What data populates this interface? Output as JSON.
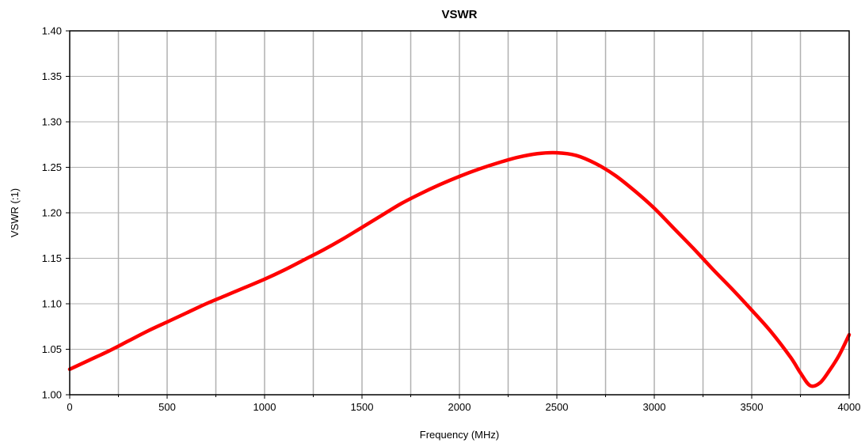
{
  "chart_data": {
    "type": "line",
    "title": "VSWR",
    "xlabel": "Frequency (MHz)",
    "ylabel": "VSWR (:1)",
    "xlim": [
      0,
      4000
    ],
    "ylim": [
      1.0,
      1.4
    ],
    "x_ticks": [
      0,
      500,
      1000,
      1500,
      2000,
      2500,
      3000,
      3500,
      4000
    ],
    "x_tick_labels": [
      "0",
      "500",
      "1000",
      "1500",
      "2000",
      "2500",
      "3000",
      "3500",
      "4000"
    ],
    "x_minor_gridlines": [
      250,
      750,
      1250,
      1750,
      2250,
      2750,
      3250,
      3750
    ],
    "y_ticks": [
      1.0,
      1.05,
      1.1,
      1.15,
      1.2,
      1.25,
      1.3,
      1.35,
      1.4
    ],
    "y_tick_labels": [
      "1.00",
      "1.05",
      "1.10",
      "1.15",
      "1.20",
      "1.25",
      "1.30",
      "1.35",
      "1.40"
    ],
    "grid": true,
    "legend": "none",
    "series": [
      {
        "color": "#ff0000",
        "x": [
          0,
          100,
          200,
          300,
          400,
          500,
          600,
          700,
          800,
          900,
          1000,
          1100,
          1200,
          1300,
          1400,
          1500,
          1600,
          1700,
          1800,
          1900,
          2000,
          2100,
          2200,
          2300,
          2400,
          2500,
          2600,
          2700,
          2800,
          2900,
          3000,
          3100,
          3200,
          3300,
          3400,
          3500,
          3600,
          3700,
          3750,
          3800,
          3850,
          3900,
          3950,
          4000
        ],
        "y": [
          1.028,
          1.038,
          1.048,
          1.059,
          1.07,
          1.08,
          1.09,
          1.1,
          1.109,
          1.118,
          1.127,
          1.137,
          1.148,
          1.159,
          1.171,
          1.184,
          1.197,
          1.21,
          1.221,
          1.231,
          1.24,
          1.248,
          1.255,
          1.261,
          1.265,
          1.266,
          1.263,
          1.254,
          1.241,
          1.224,
          1.205,
          1.183,
          1.161,
          1.138,
          1.116,
          1.093,
          1.069,
          1.041,
          1.024,
          1.01,
          1.013,
          1.027,
          1.044,
          1.066
        ]
      }
    ]
  }
}
